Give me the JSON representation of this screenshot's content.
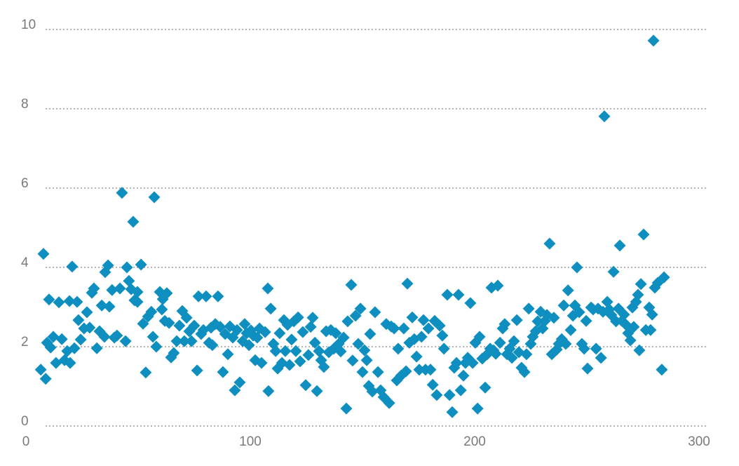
{
  "chart_data": {
    "type": "scatter",
    "color": "#0e8fc0",
    "grid": true,
    "xlim": [
      0,
      300
    ],
    "xticks": [
      0,
      100,
      200,
      300
    ],
    "ylim": [
      0,
      10
    ],
    "yticks": [
      0,
      2,
      4,
      6,
      8,
      10
    ],
    "x": [
      6.6,
      7.8,
      8.8,
      9.4,
      10.3,
      11,
      12.2,
      13.4,
      14.7,
      16,
      17.2,
      18.4,
      19.7,
      19.4,
      20.6,
      21.6,
      22.8,
      23.4,
      24.4,
      25.9,
      27.2,
      28.4,
      29.4,
      30.3,
      31.6,
      32.8,
      33.8,
      35,
      35.3,
      36.6,
      37.2,
      38.4,
      39.4,
      40.6,
      41.9,
      42.8,
      44.4,
      45,
      45.9,
      46.9,
      47.8,
      48.4,
      49.7,
      49.7,
      51.3,
      52.2,
      53.4,
      54.4,
      55.9,
      56.6,
      57.2,
      58.1,
      59.7,
      60.6,
      61,
      61.9,
      62.8,
      63.8,
      64.7,
      65.9,
      67.2,
      68.4,
      69.7,
      70.6,
      71.6,
      72.8,
      73.8,
      75,
      76.3,
      76.9,
      78.1,
      79.1,
      80.3,
      81.6,
      82.5,
      83.1,
      84.4,
      85.6,
      86.6,
      87.8,
      88.8,
      90,
      90.9,
      92.2,
      93.1,
      94.1,
      95.3,
      96.6,
      97.5,
      98.4,
      99.4,
      100.3,
      101.3,
      102.2,
      103.1,
      104.1,
      105,
      106.6,
      107.8,
      108.1,
      109.1,
      110.3,
      111.3,
      112.2,
      113.1,
      114.1,
      115,
      115.6,
      116.6,
      117.5,
      118.4,
      119.4,
      120.3,
      121.3,
      122.2,
      123.4,
      124.7,
      125.9,
      126.9,
      127.8,
      128.8,
      129.7,
      130.6,
      131.6,
      132.8,
      133.8,
      135,
      135.9,
      137.2,
      138.1,
      139.4,
      140.3,
      141.6,
      142.8,
      143.4,
      145,
      145.6,
      146.9,
      148.1,
      149.1,
      150,
      150.9,
      151.9,
      152.8,
      153.4,
      154.4,
      155.6,
      156.9,
      158.1,
      159.4,
      160.6,
      161.9,
      162.8,
      164.1,
      165.3,
      165.9,
      167.2,
      168.4,
      169.4,
      170,
      170.9,
      172.2,
      173.1,
      174.1,
      175.3,
      176.3,
      177.2,
      178.1,
      179.4,
      180.3,
      181.3,
      182.2,
      183.1,
      184.4,
      185.6,
      186.3,
      187.8,
      188.8,
      190,
      190.9,
      191.9,
      192.8,
      193.8,
      195,
      195.9,
      196.9,
      198.1,
      199.1,
      200.3,
      201.3,
      202.2,
      203.4,
      204.7,
      205.6,
      206.9,
      207.5,
      208.4,
      209.4,
      210.3,
      211.3,
      212.5,
      213.4,
      214.4,
      215.6,
      216.6,
      217.5,
      218.8,
      219.7,
      220.9,
      222.2,
      223.1,
      224.1,
      225,
      225.9,
      227.2,
      228.1,
      229.4,
      230.3,
      231.3,
      232.2,
      233.4,
      234.4,
      235.3,
      236.6,
      237.5,
      238.8,
      239.7,
      240.6,
      241.6,
      242.8,
      243.8,
      244.7,
      245.6,
      246.6,
      247.8,
      248.8,
      249.7,
      250.3,
      251.9,
      252.8,
      254.1,
      255,
      256.3,
      257.2,
      257.8,
      259.1,
      260,
      260.9,
      261.9,
      263,
      264.1,
      264.7,
      265.6,
      266.6,
      267.5,
      268.4,
      269.4,
      270.3,
      270.9,
      271.9,
      272.8,
      273.4,
      274.1,
      275.3,
      276.3,
      277.8,
      278.4,
      279.1,
      279.7,
      280.3,
      281.6,
      283.4,
      284.4
    ],
    "values": [
      1.42,
      4.34,
      1.19,
      2.1,
      3.19,
      1.98,
      2.25,
      1.59,
      3.12,
      2.19,
      1.66,
      1.89,
      1.59,
      3.15,
      4.02,
      1.96,
      3.13,
      2.67,
      2.18,
      2.46,
      2.87,
      2.48,
      3.36,
      3.47,
      1.96,
      2.39,
      3.04,
      2.25,
      3.88,
      4.05,
      3.01,
      3.43,
      2.23,
      2.28,
      3.47,
      5.88,
      2.14,
      4.0,
      3.66,
      3.45,
      5.15,
      3.17,
      3.38,
      3.13,
      4.07,
      2.58,
      1.35,
      2.76,
      2.88,
      2.25,
      5.77,
      2.0,
      3.38,
      2.94,
      3.2,
      2.65,
      3.35,
      2.6,
      1.73,
      1.84,
      2.14,
      2.53,
      2.9,
      2.14,
      2.73,
      2.39,
      2.14,
      2.53,
      1.4,
      3.27,
      2.32,
      2.42,
      3.27,
      2.1,
      2.48,
      2.04,
      2.57,
      3.27,
      2.5,
      1.36,
      2.32,
      1.81,
      2.51,
      2.23,
      0.9,
      2.42,
      1.1,
      2.14,
      2.57,
      2.34,
      2.04,
      2.41,
      2.28,
      1.66,
      2.23,
      2.46,
      1.59,
      2.37,
      3.47,
      0.88,
      2.96,
      2.07,
      1.89,
      1.45,
      2.34,
      1.59,
      2.67,
      1.89,
      2.55,
      1.54,
      2.18,
      2.64,
      1.89,
      2.74,
      1.63,
      2.37,
      1.03,
      1.79,
      2.5,
      2.73,
      2.1,
      0.88,
      1.89,
      1.66,
      1.49,
      2.39,
      1.86,
      2.42,
      1.95,
      2.34,
      2.07,
      1.88,
      2.23,
      0.44,
      2.64,
      3.56,
      1.65,
      2.78,
      2.07,
      2.96,
      1.36,
      1.91,
      1.66,
      1.01,
      2.32,
      0.87,
      2.87,
      1.36,
      0.9,
      0.73,
      2.57,
      0.58,
      2.51,
      2.46,
      1.15,
      1.95,
      1.27,
      2.46,
      1.38,
      3.59,
      2.1,
      2.74,
      2.19,
      1.75,
      1.42,
      2.25,
      2.67,
      1.42,
      2.46,
      1.42,
      1.04,
      2.65,
      0.78,
      2.53,
      2.28,
      1.95,
      3.31,
      0.78,
      0.35,
      1.47,
      1.59,
      3.31,
      0.9,
      1.27,
      1.59,
      1.72,
      3.1,
      1.59,
      2.1,
      0.44,
      2.25,
      1.7,
      0.97,
      1.81,
      1.95,
      3.49,
      1.91,
      1.82,
      3.54,
      2.1,
      2.46,
      2.57,
      1.81,
      1.95,
      1.72,
      2.14,
      2.67,
      1.86,
      1.47,
      1.36,
      1.81,
      2.96,
      2.07,
      2.25,
      2.39,
      2.64,
      2.88,
      2.46,
      2.65,
      2.8,
      4.6,
      1.81,
      2.73,
      1.93,
      2.07,
      2.19,
      3.04,
      2.07,
      3.42,
      2.42,
      2.78,
      3.04,
      4.0,
      2.87,
      2.07,
      1.95,
      2.65,
      1.45,
      2.99,
      2.94,
      1.95,
      2.96,
      1.72,
      2.88,
      7.81,
      3.13,
      2.94,
      2.8,
      3.89,
      2.64,
      2.96,
      4.55,
      2.65,
      2.81,
      2.55,
      2.34,
      2.16,
      2.99,
      2.5,
      3.13,
      3.31,
      1.91,
      3.58,
      4.83,
      2.42,
      2.99,
      2.42,
      2.81,
      9.72,
      3.49,
      3.61,
      1.42,
      3.75
    ]
  }
}
